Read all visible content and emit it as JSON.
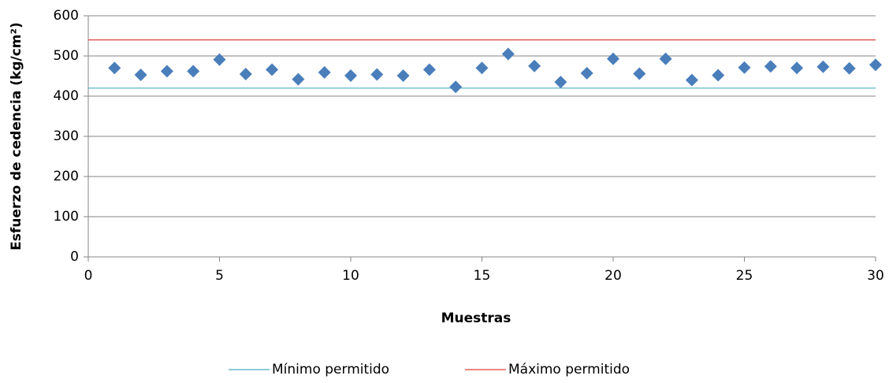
{
  "chart_data": {
    "type": "scatter",
    "x_label": "Muestras",
    "y_label": "Esfuerzo de cedencia (kg/cm²)",
    "x": [
      1,
      2,
      3,
      4,
      5,
      6,
      7,
      8,
      9,
      10,
      11,
      12,
      13,
      14,
      15,
      16,
      17,
      18,
      19,
      20,
      21,
      22,
      23,
      24,
      25,
      26,
      27,
      28,
      29,
      30
    ],
    "values": [
      470,
      453,
      462,
      462,
      491,
      455,
      466,
      442,
      459,
      451,
      454,
      451,
      466,
      423,
      470,
      505,
      475,
      435,
      457,
      493,
      456,
      493,
      440,
      452,
      471,
      474,
      470,
      473,
      469,
      478
    ],
    "color": "#4a7ebb",
    "reference_lines": [
      {
        "name": "Mínimo permitido",
        "color": "#4bacc6",
        "value": 420
      },
      {
        "name": "Máximo permitido",
        "color": "#e0403c",
        "value": 540
      }
    ],
    "xlim": [
      0,
      30
    ],
    "xticks": [
      0,
      5,
      10,
      15,
      20,
      25,
      30
    ],
    "ylim": [
      0,
      600
    ],
    "yticks": [
      0,
      100,
      200,
      300,
      400,
      500,
      600
    ],
    "grid": true,
    "legend": "bottom"
  }
}
